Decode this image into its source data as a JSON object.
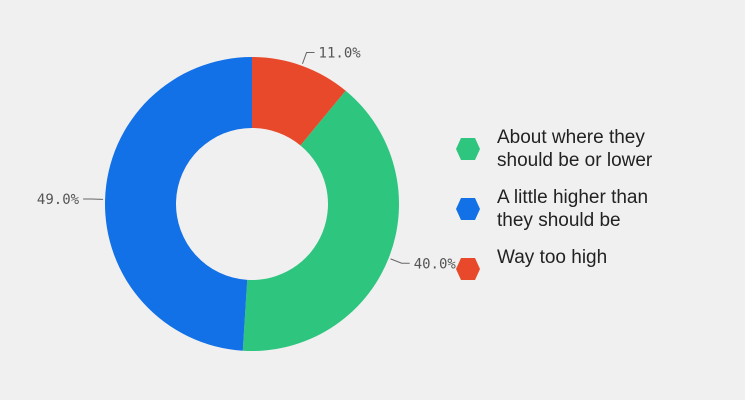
{
  "chart_data": {
    "type": "pie",
    "title": "",
    "donut": true,
    "categories": [
      "Way too high",
      "About where they should be or lower",
      "A little higher than they should be"
    ],
    "values": [
      11.0,
      40.0,
      49.0
    ],
    "value_labels": [
      "11.0%",
      "40.0%",
      "49.0%"
    ],
    "colors": [
      "#e8492a",
      "#2ec57f",
      "#1271e6"
    ],
    "legend_position": "right"
  },
  "legend": {
    "items": [
      {
        "label": "About where they\nshould be or lower",
        "color": "#2ec57f",
        "icon": "hexagon-icon"
      },
      {
        "label": "A little higher than\nthey should be",
        "color": "#1271e6",
        "icon": "hexagon-icon"
      },
      {
        "label": "Way too high",
        "color": "#e8492a",
        "icon": "hexagon-icon"
      }
    ]
  }
}
